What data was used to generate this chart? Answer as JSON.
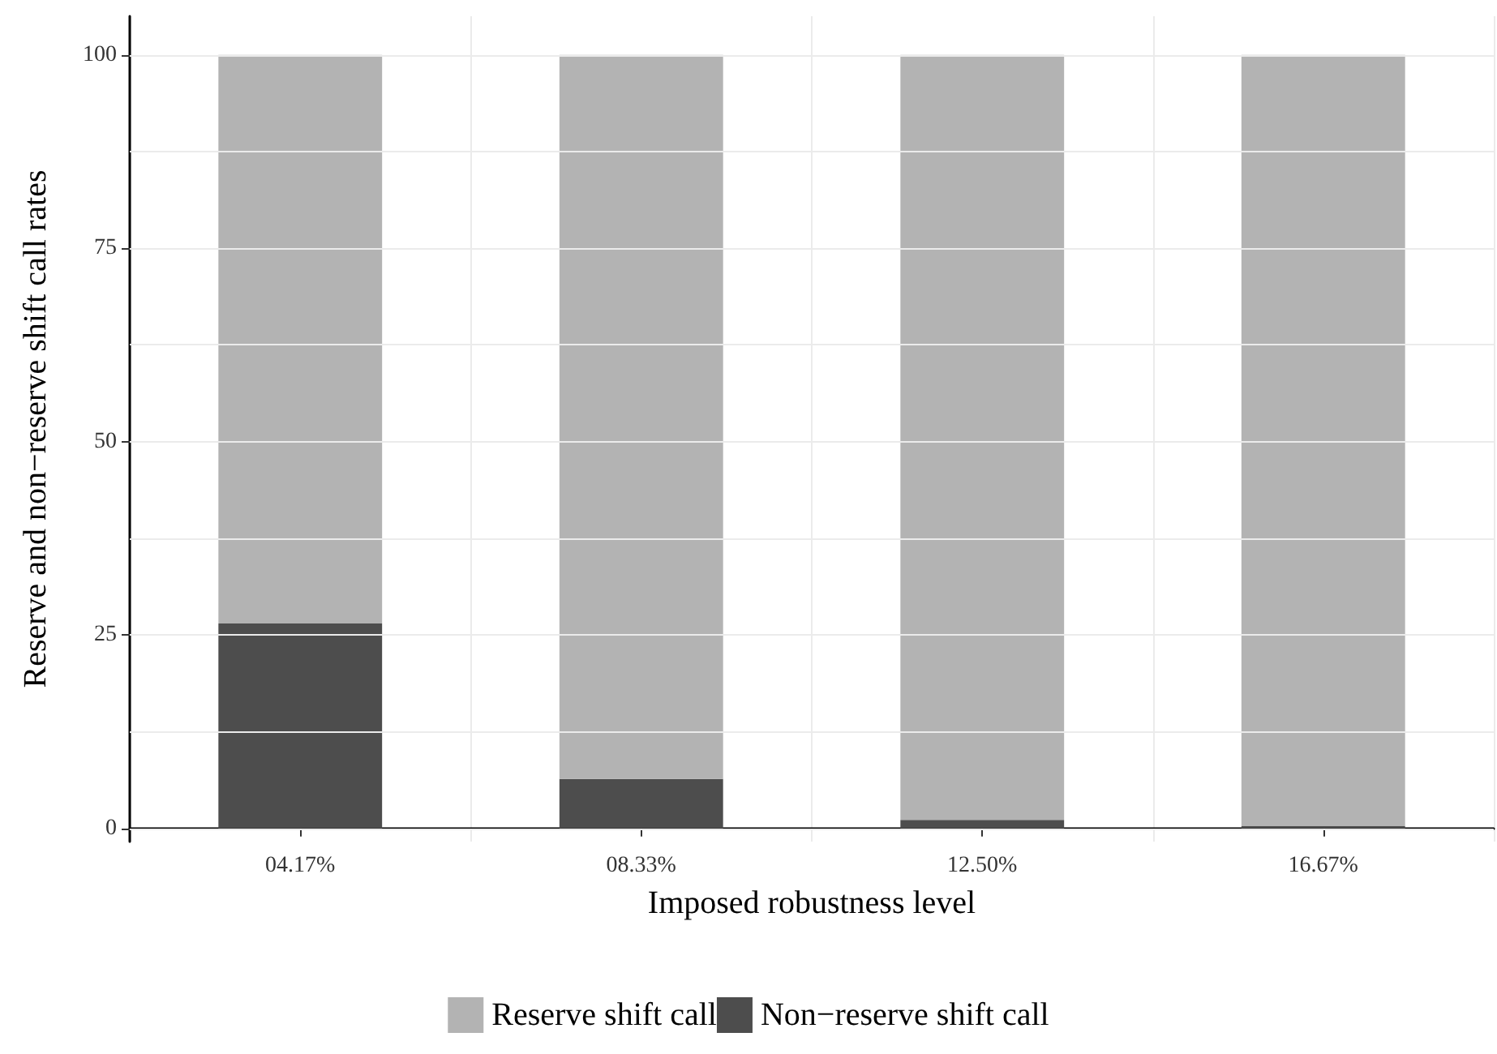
{
  "chart_data": {
    "type": "bar",
    "stacked": true,
    "xlabel": "Imposed robustness level",
    "ylabel": "Reserve and non−reserve shift call rates",
    "categories": [
      "04.17%",
      "08.33%",
      "12.50%",
      "16.67%"
    ],
    "series": [
      {
        "name": "Non−reserve shift call",
        "color": "#4d4d4d",
        "values": [
          26.5,
          6.4,
          1.1,
          0.3
        ]
      },
      {
        "name": "Reserve shift call",
        "color": "#b3b3b3",
        "values": [
          73.5,
          93.6,
          98.9,
          99.7
        ]
      }
    ],
    "ylim": [
      -1.7,
      105
    ],
    "yticks": [
      0,
      25,
      50,
      75,
      100
    ],
    "grid": true,
    "legend": "bottom"
  }
}
